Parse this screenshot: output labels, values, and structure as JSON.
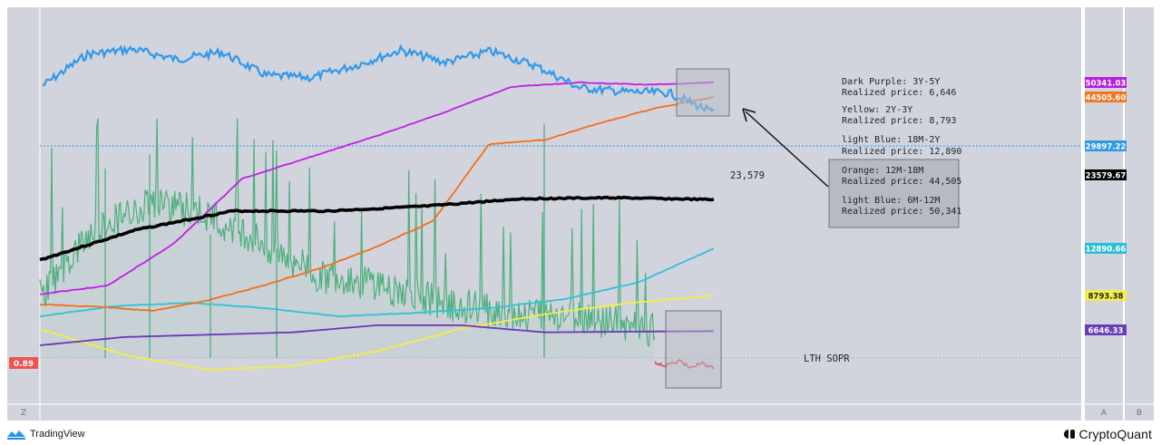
{
  "chart_data": {
    "type": "line",
    "price_axis_badges": [
      {
        "label": "50341.03",
        "color": "#b71ee0",
        "series": "dark-purple"
      },
      {
        "label": "44505.60",
        "color": "#f4741f",
        "series": "orange"
      },
      {
        "label": "29897.22",
        "color": "#2f96e8",
        "series": "btc-price"
      },
      {
        "label": "23579.67",
        "color": "#000000",
        "series": "realized-price"
      },
      {
        "label": "12890.66",
        "color": "#29bfd6",
        "series": "light-blue"
      },
      {
        "label": "8793.38",
        "color": "#f3ef4c",
        "series": "yellow"
      },
      {
        "label": "6646.33",
        "color": "#6a3db8",
        "series": "purple"
      }
    ],
    "left_badge": {
      "label": "0.89",
      "color": "#ef5350"
    },
    "annotations": {
      "realized_price_value": "23,579",
      "sopr_label": "LTH SOPR",
      "legend_upper": [
        "Dark Purple: 3Y-5Y",
        "Realized price: 6,646",
        "Yellow: 2Y-3Y",
        "Realized price: 8,793",
        "light Blue: 18M-2Y",
        "Realized price: 12,890"
      ],
      "legend_box": [
        "Orange: 12M-18M",
        "Realized price: 44,505",
        "light Blue: 6M-12M",
        "Realized price: 50,341"
      ]
    },
    "series": [
      {
        "color": "#3198ec",
        "values": [
          0.62,
          0.93,
          0.98,
          0.88,
          0.95,
          0.72,
          0.7,
          0.82,
          0.97,
          0.85,
          0.96,
          0.82,
          0.6,
          0.56,
          0.55,
          0.35
        ]
      },
      {
        "color": "#000000",
        "values": [
          0.03,
          0.35,
          0.55,
          0.55,
          0.6,
          0.68,
          0.69,
          0.67
        ]
      },
      {
        "color": "#c21ee6",
        "values": [
          0.01,
          0.05,
          0.25,
          0.55,
          0.65,
          0.75,
          0.86,
          0.98,
          1.0,
          0.99,
          1.0
        ]
      },
      {
        "color": "#f26f1a",
        "values": [
          0.03,
          0.02,
          0.0,
          0.05,
          0.12,
          0.2,
          0.3,
          0.42,
          0.78,
          0.8,
          0.88,
          0.95,
          1.0
        ]
      },
      {
        "color": "#2ec2d6",
        "values": [
          0.0,
          0.15,
          0.2,
          0.12,
          0.0,
          0.05,
          0.12,
          0.25,
          0.5,
          1.0
        ]
      },
      {
        "color": "#f4ee42",
        "values": [
          0.55,
          0.2,
          0.0,
          0.05,
          0.25,
          0.55,
          0.75,
          0.9,
          1.0
        ]
      },
      {
        "color": "#6b35b8",
        "values": [
          0.0,
          0.35,
          0.45,
          0.55,
          0.85,
          0.85,
          0.55,
          0.58,
          0.6
        ]
      },
      {
        "color": "#4caf7d",
        "values": [
          0.3,
          0.62,
          0.78,
          0.7,
          0.55,
          0.4,
          0.35,
          0.28,
          0.22,
          0.2,
          0.18,
          0.12
        ]
      },
      {
        "color": "#d9495b",
        "values": [
          0.5,
          0.2,
          0.6,
          0.1,
          0.4,
          0.0
        ]
      }
    ]
  },
  "axis": {
    "left_corner": "Z",
    "right_a": "A",
    "right_b": "B"
  },
  "footer": {
    "left_brand": "TradingView",
    "right_brand": "CryptoQuant"
  },
  "colors": {
    "panel_bg": "#d1d4dc",
    "gutter_bg": "#ffffff"
  }
}
